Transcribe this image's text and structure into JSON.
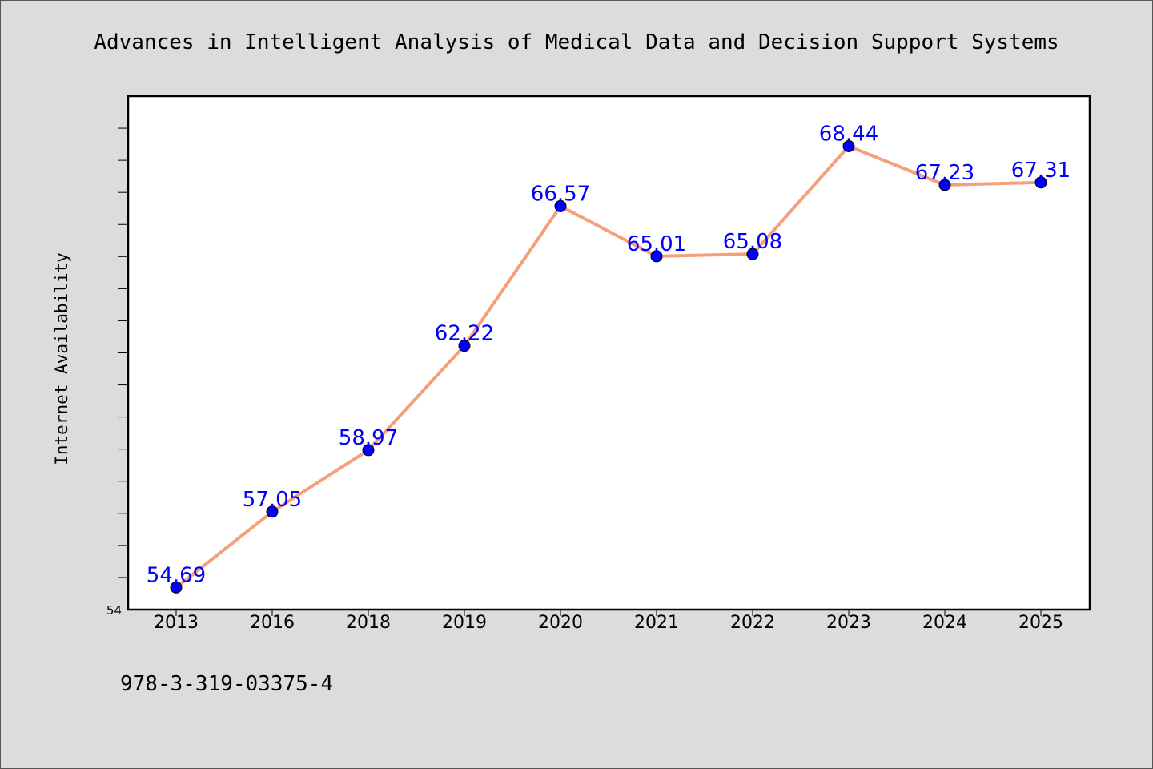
{
  "chart_data": {
    "type": "line",
    "title": "Advances in Intelligent Analysis of Medical Data and Decision Support Systems",
    "xlabel": "",
    "ylabel": "Internet Availability",
    "categories": [
      "2013",
      "2016",
      "2018",
      "2019",
      "2020",
      "2021",
      "2022",
      "2023",
      "2024",
      "2025"
    ],
    "values": [
      54.69,
      57.05,
      58.97,
      62.22,
      66.57,
      65.01,
      65.08,
      68.44,
      67.23,
      67.31
    ],
    "data_labels": [
      "54.69",
      "57.05",
      "58.97",
      "62.22",
      "66.57",
      "65.01",
      "65.08",
      "68.44",
      "67.23",
      "67.31"
    ],
    "ylim": [
      54,
      70
    ],
    "ytick_labels": [
      "54"
    ],
    "grid": false,
    "line_color": "#f4a07a",
    "marker_color": "#0000ff",
    "label_color": "#0000ff"
  },
  "footer_text": "978-3-319-03375-4"
}
